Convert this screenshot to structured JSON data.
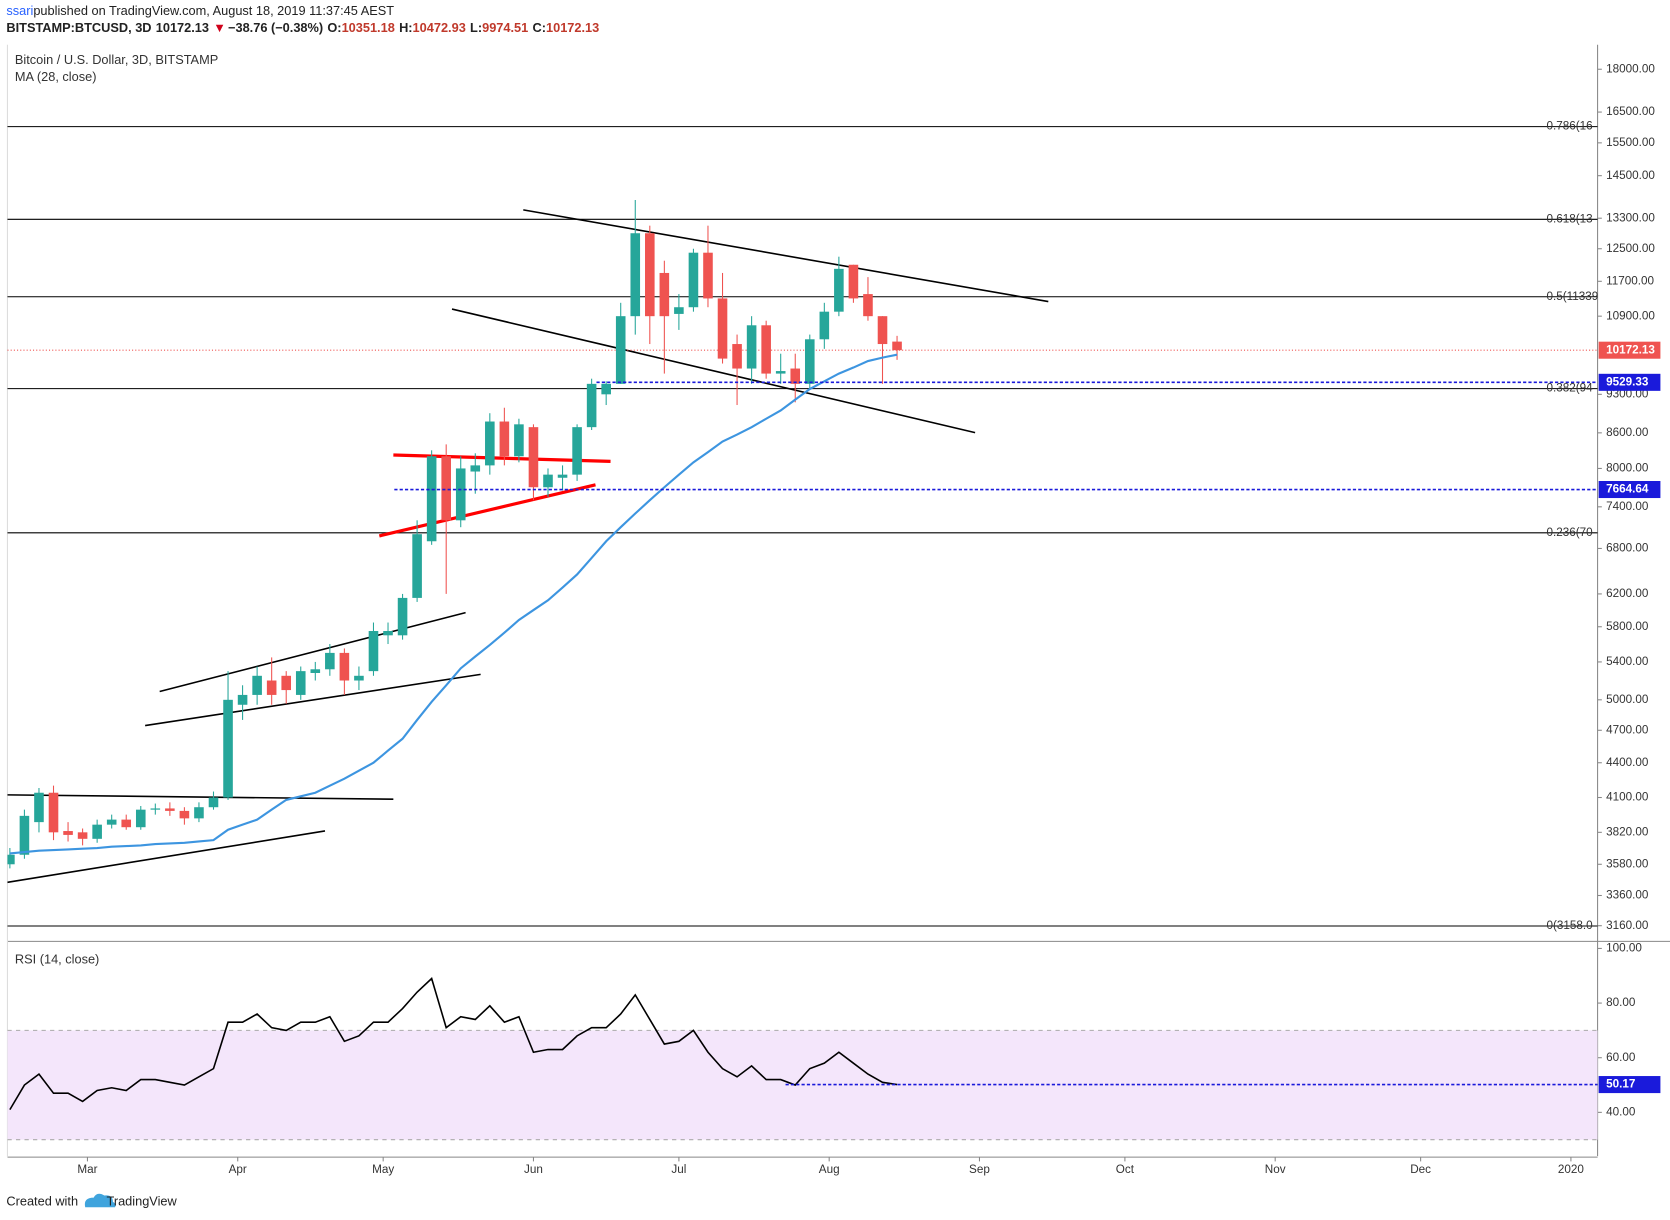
{
  "header": {
    "author": "ssari",
    "published": " published on TradingView.com, August 18, 2019 11:37:45 AEST",
    "symbol": "BITSTAMP:BTCUSD, 3D",
    "arrow": "▼",
    "change": "−38.76 (−0.38%)",
    "ohlc_labels": [
      "O:",
      "H:",
      "L:",
      "C:"
    ]
  },
  "footer": {
    "created": "Created with",
    "brand": "TradingView"
  },
  "chart_data": {
    "type": "candlestick",
    "title": "Bitcoin / U.S. Dollar, 3D, BITSTAMP",
    "ma_title": "MA (28, close)",
    "log_scale": true,
    "up_color": "#26a69a",
    "down_color": "#ef5350",
    "ma_color": "#3d95e0",
    "xlim": [
      42.5,
      370.5
    ],
    "xticks": [
      {
        "value": 59,
        "label": "Mar"
      },
      {
        "value": 90,
        "label": "Apr"
      },
      {
        "value": 120,
        "label": "May"
      },
      {
        "value": 151,
        "label": "Jun"
      },
      {
        "value": 181,
        "label": "Jul"
      },
      {
        "value": 212,
        "label": "Aug"
      },
      {
        "value": 243,
        "label": "Sep"
      },
      {
        "value": 273,
        "label": "Oct"
      },
      {
        "value": 304,
        "label": "Nov"
      },
      {
        "value": 334,
        "label": "Dec"
      },
      {
        "value": 365,
        "label": "2020"
      }
    ],
    "ylim": [
      3071,
      18918
    ],
    "yticks": [
      {
        "value": 3160,
        "label": "3160.00"
      },
      {
        "value": 3360,
        "label": "3360.00"
      },
      {
        "value": 3580,
        "label": "3580.00"
      },
      {
        "value": 3820,
        "label": "3820.00"
      },
      {
        "value": 4100,
        "label": "4100.00"
      },
      {
        "value": 4400,
        "label": "4400.00"
      },
      {
        "value": 4700,
        "label": "4700.00"
      },
      {
        "value": 5000,
        "label": "5000.00"
      },
      {
        "value": 5400,
        "label": "5400.00"
      },
      {
        "value": 5800,
        "label": "5800.00"
      },
      {
        "value": 6200,
        "label": "6200.00"
      },
      {
        "value": 6800,
        "label": "6800.00"
      },
      {
        "value": 7400,
        "label": "7400.00"
      },
      {
        "value": 8000,
        "label": "8000.00"
      },
      {
        "value": 8600,
        "label": "8600.00"
      },
      {
        "value": 9300,
        "label": "9300.00"
      },
      {
        "value": 10900,
        "label": "10900.00"
      },
      {
        "value": 11700,
        "label": "11700.00"
      },
      {
        "value": 12500,
        "label": "12500.00"
      },
      {
        "value": 13300,
        "label": "13300.00"
      },
      {
        "value": 14500,
        "label": "14500.00"
      },
      {
        "value": 15500,
        "label": "15500.00"
      },
      {
        "value": 16500,
        "label": "16500.00"
      },
      {
        "value": 18000,
        "label": "18000.00"
      }
    ],
    "candles": {
      "x": [
        43,
        46,
        49,
        52,
        55,
        58,
        61,
        64,
        67,
        70,
        73,
        76,
        79,
        82,
        85,
        88,
        91,
        94,
        97,
        100,
        103,
        106,
        109,
        112,
        115,
        118,
        121,
        124,
        127,
        130,
        133,
        136,
        139,
        142,
        145,
        148,
        151,
        154,
        157,
        160,
        163,
        166,
        169,
        172,
        175,
        178,
        181,
        184,
        187,
        190,
        193,
        196,
        199,
        202,
        205,
        208,
        211,
        214,
        217,
        220,
        223,
        226
      ],
      "open": [
        3580,
        3650,
        3900,
        4140,
        3830,
        3820,
        3770,
        3880,
        3920,
        3860,
        4000,
        4010,
        3990,
        3930,
        4020,
        4100,
        4950,
        5050,
        5200,
        5250,
        5050,
        5280,
        5320,
        5500,
        5200,
        5300,
        5700,
        5700,
        6150,
        6900,
        8200,
        7200,
        7950,
        8050,
        8800,
        8200,
        8700,
        7700,
        7850,
        7900,
        8700,
        9300,
        9500,
        10900,
        12900,
        11900,
        10950,
        11100,
        12400,
        11300,
        10300,
        9800,
        10700,
        9700,
        9800,
        9500,
        10400,
        11000,
        12100,
        11400,
        10900,
        10351.18
      ],
      "high": [
        3700,
        4000,
        4180,
        4200,
        3900,
        3850,
        3920,
        3960,
        3960,
        4030,
        4050,
        4060,
        4020,
        4060,
        4150,
        5300,
        5150,
        5350,
        5450,
        5300,
        5350,
        5400,
        5600,
        5550,
        5350,
        5850,
        5850,
        6200,
        7200,
        8300,
        8400,
        8200,
        8250,
        8950,
        9050,
        8850,
        8750,
        8000,
        8050,
        8750,
        9600,
        9550,
        11200,
        13800,
        13100,
        12200,
        11400,
        12500,
        13100,
        11900,
        10500,
        10900,
        10800,
        10100,
        10100,
        10500,
        11200,
        12300,
        12100,
        11800,
        10900,
        10472.93
      ],
      "low": [
        3550,
        3620,
        3820,
        3760,
        3750,
        3720,
        3740,
        3850,
        3840,
        3840,
        3960,
        3950,
        3880,
        3900,
        4000,
        4080,
        4800,
        4950,
        4950,
        4960,
        5000,
        5200,
        5250,
        5050,
        5100,
        5250,
        5600,
        5650,
        6100,
        6850,
        6200,
        7100,
        7600,
        7900,
        8050,
        8100,
        7500,
        7550,
        7650,
        7800,
        8650,
        9100,
        9500,
        10500,
        10300,
        9700,
        10600,
        11000,
        11100,
        9900,
        9100,
        9500,
        9600,
        9500,
        9150,
        9400,
        10200,
        10900,
        11200,
        10800,
        9500,
        9974.51
      ],
      "close": [
        3650,
        3950,
        4140,
        3820,
        3800,
        3770,
        3880,
        3920,
        3860,
        4000,
        4010,
        3990,
        3930,
        4020,
        4100,
        5000,
        5050,
        5250,
        5050,
        5100,
        5300,
        5320,
        5500,
        5200,
        5250,
        5750,
        5750,
        6150,
        7000,
        8200,
        7200,
        8000,
        8050,
        8800,
        8200,
        8750,
        7700,
        7900,
        7900,
        8700,
        9500,
        9500,
        10900,
        12900,
        10900,
        10900,
        11100,
        12400,
        11300,
        10000,
        9800,
        10700,
        9700,
        9750,
        9500,
        10400,
        11000,
        12000,
        11300,
        10900,
        10300,
        10172.13
      ]
    },
    "ma": [
      3660,
      3670,
      3680,
      3685,
      3690,
      3695,
      3700,
      3710,
      3715,
      3720,
      3730,
      3735,
      3740,
      3750,
      3760,
      3840,
      3880,
      3920,
      4000,
      4080,
      4110,
      4140,
      4200,
      4260,
      4330,
      4400,
      4510,
      4620,
      4800,
      4980,
      5150,
      5330,
      5460,
      5590,
      5730,
      5880,
      6000,
      6120,
      6280,
      6450,
      6670,
      6900,
      7100,
      7300,
      7500,
      7700,
      7900,
      8100,
      8270,
      8450,
      8570,
      8700,
      8850,
      9000,
      9200,
      9400,
      9550,
      9700,
      9820,
      9950,
      10020,
      10080
    ],
    "fib_levels": [
      {
        "value": 16019,
        "label": "0.786(16"
      },
      {
        "value": 13270,
        "label": "0.618(13"
      },
      {
        "value": 11339,
        "label": "0.5(11339"
      },
      {
        "value": 9408,
        "label": "0.382(94"
      },
      {
        "value": 7019,
        "label": "0.236(70"
      },
      {
        "value": 3158,
        "label": "0(3158.0"
      }
    ],
    "trendlines": [
      {
        "color": "#000000",
        "points": [
          42.5,
          3451,
          108,
          3831
        ]
      },
      {
        "color": "#000000",
        "points": [
          42.5,
          4122,
          122.1,
          4086
        ]
      },
      {
        "color": "#000000",
        "points": [
          70.9,
          4745,
          140.1,
          5265
        ]
      },
      {
        "color": "#000000",
        "points": [
          73.9,
          5085,
          137,
          5969
        ]
      },
      {
        "color": "#ff0000",
        "points": [
          119.2,
          6975,
          163.8,
          7738
        ]
      },
      {
        "color": "#ff0000",
        "points": [
          122.1,
          8222,
          166.9,
          8116
        ]
      },
      {
        "color": "#000000",
        "points": [
          134.2,
          11059,
          242.1,
          8604
        ]
      },
      {
        "color": "#000000",
        "points": [
          148.9,
          13527,
          257.2,
          11228
        ]
      }
    ],
    "levels": [
      {
        "value": 9529.33,
        "from": 164
      },
      {
        "value": 7664.64,
        "from": 122.3
      }
    ],
    "rsi": {
      "title": "RSI (14, close)",
      "color": "#000000",
      "band": [
        30,
        70
      ],
      "ylim": [
        24,
        102
      ],
      "yticks": [
        {
          "value": 40,
          "label": "40.00"
        },
        {
          "value": 60,
          "label": "60.00"
        },
        {
          "value": 80,
          "label": "80.00"
        },
        {
          "value": 100,
          "label": "100.00"
        }
      ],
      "values": [
        41,
        50,
        54,
        47,
        47,
        44,
        48,
        49,
        48,
        52,
        52,
        51,
        50,
        53,
        56,
        73,
        73,
        76,
        71,
        70,
        73,
        73,
        75,
        66,
        68,
        73,
        73,
        78,
        84,
        89,
        71,
        75,
        74,
        79,
        73,
        75,
        62,
        63,
        63,
        68,
        71,
        71,
        76,
        83,
        74,
        65,
        66,
        70,
        62,
        56,
        53,
        57,
        52,
        52,
        50,
        56,
        58,
        62,
        58,
        54,
        51,
        50.17
      ],
      "level": {
        "value": 50.17,
        "from": 203
      }
    }
  }
}
